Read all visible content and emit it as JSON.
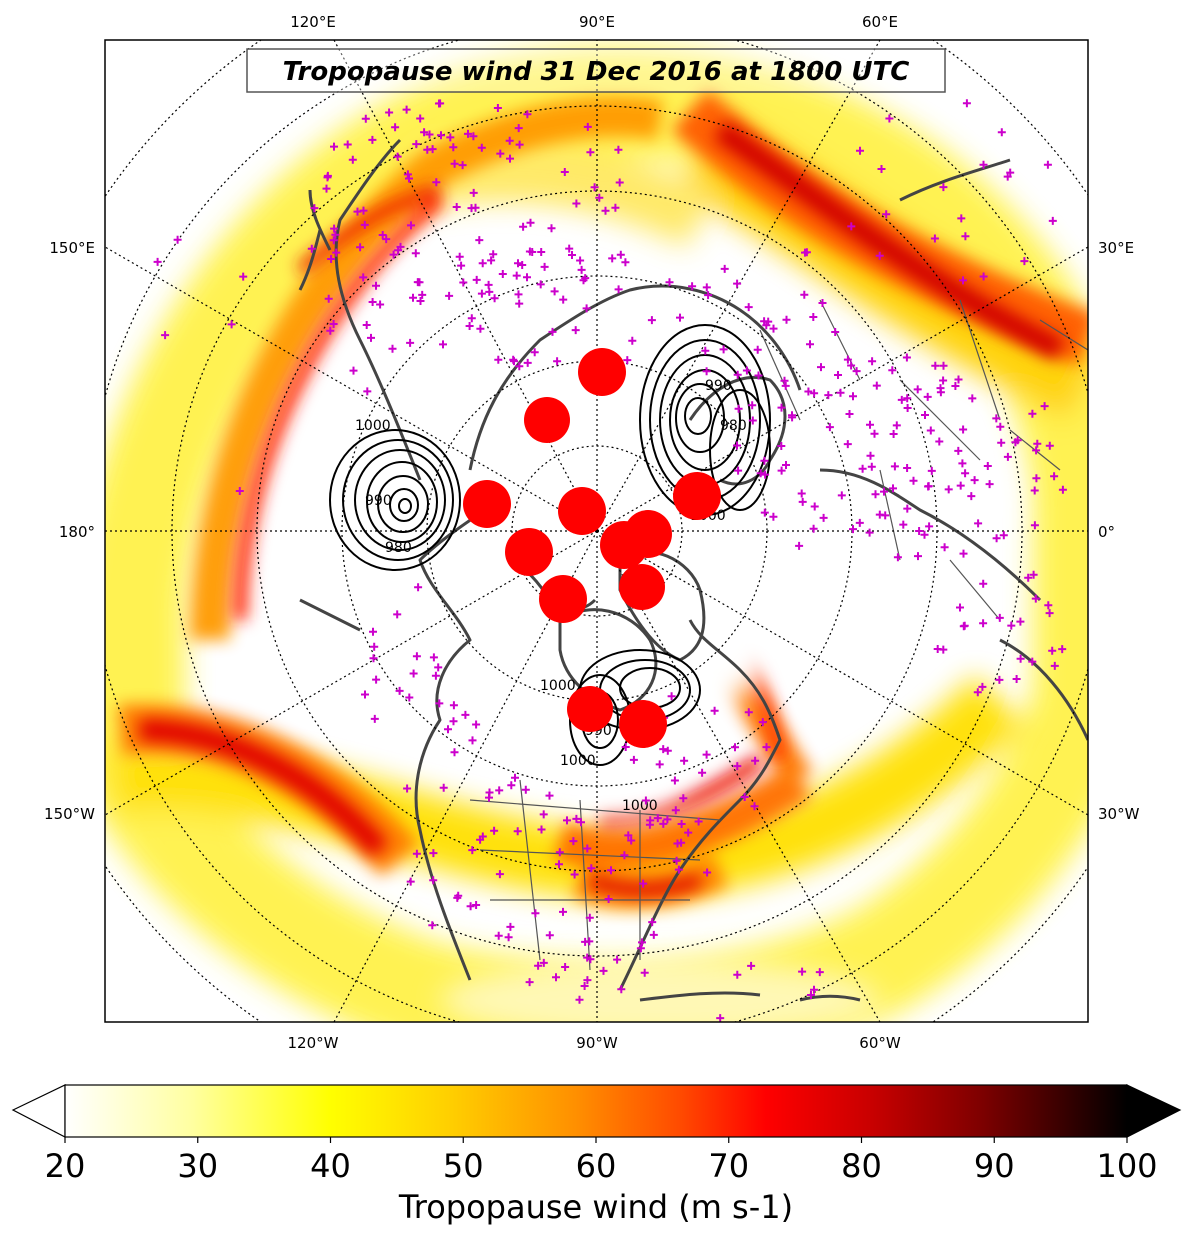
{
  "title": "Tropopause wind 31 Dec 2016 at 1800 UTC",
  "colorbar": {
    "label": "Tropopause wind (m s-1)",
    "min": 20,
    "max": 100,
    "ticks": [
      "20",
      "30",
      "40",
      "50",
      "60",
      "70",
      "80",
      "90",
      "100"
    ],
    "extend": "both",
    "colormap": [
      "#ffffff",
      "#ffff66",
      "#ffff00",
      "#ffd000",
      "#ff9900",
      "#ff5500",
      "#ff0000",
      "#cc0000",
      "#880000",
      "#330000",
      "#000000"
    ]
  },
  "map": {
    "projection": "north-polar-stereographic",
    "center_longitude": "90°W",
    "grid_labels": {
      "top": [
        "120°E",
        "90°E",
        "60°E"
      ],
      "bottom": [
        "120°W",
        "90°W",
        "60°W"
      ],
      "left": [
        "150°E",
        "180°",
        "150°W"
      ],
      "right": [
        "30°E",
        "0°",
        "30°W"
      ]
    },
    "contour_labels": [
      "1000",
      "990",
      "980",
      "1000",
      "990",
      "980",
      "1000",
      "990",
      "1000",
      "1000"
    ],
    "colors": {
      "coastline": "#444444",
      "station_markers": "#cc00cc",
      "cyclone_markers": "#ff0000",
      "contours": "#000000"
    },
    "layers": [
      "tropopause-wind-shading",
      "pressure-contours",
      "observation-stations",
      "cyclone-centers",
      "coastlines",
      "borders",
      "graticule"
    ]
  }
}
